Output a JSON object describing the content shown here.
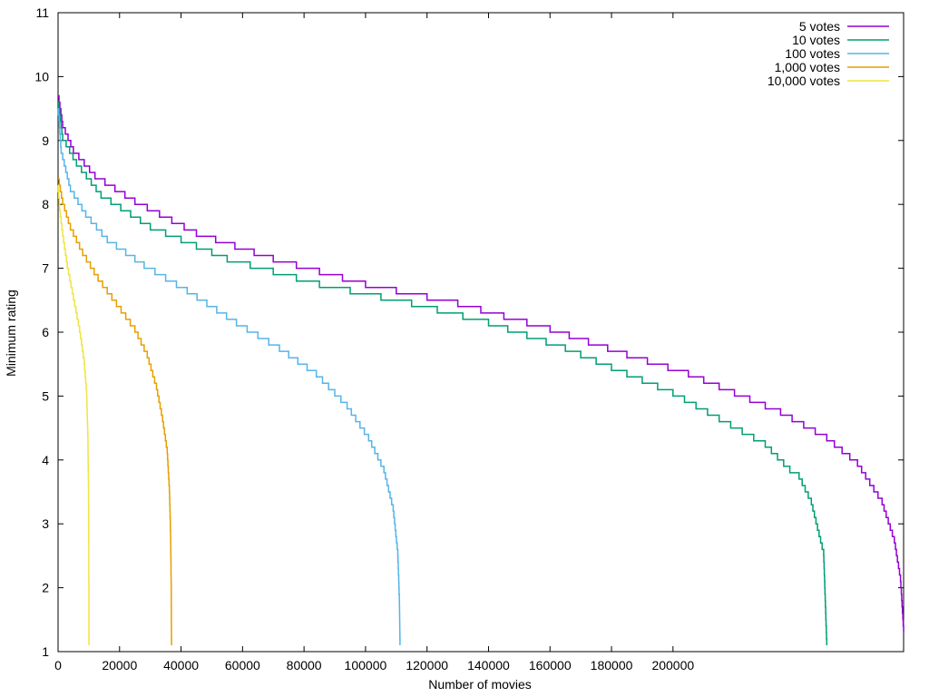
{
  "chart_data": {
    "type": "line",
    "title": "",
    "xlabel": "Number of movies",
    "ylabel": "Minimum rating",
    "xlim": [
      0,
      275000
    ],
    "ylim": [
      1,
      11
    ],
    "x_ticks": [
      "0",
      "20000",
      "40000",
      "60000",
      "80000",
      "100000",
      "120000",
      "140000",
      "160000",
      "180000",
      "200000"
    ],
    "x_tick_values": [
      0,
      20000,
      40000,
      60000,
      80000,
      100000,
      120000,
      140000,
      160000,
      180000,
      200000
    ],
    "y_ticks": [
      "1",
      "2",
      "3",
      "4",
      "5",
      "6",
      "7",
      "8",
      "9",
      "10",
      "11"
    ],
    "y_tick_values": [
      1,
      2,
      3,
      4,
      5,
      6,
      7,
      8,
      9,
      10,
      11
    ],
    "grid": false,
    "legend_position": "top-right",
    "series": [
      {
        "name": "5 votes",
        "color": "#9400d3",
        "points": [
          [
            0,
            9.7
          ],
          [
            1500,
            9.2
          ],
          [
            5000,
            8.8
          ],
          [
            12000,
            8.4
          ],
          [
            25000,
            8.0
          ],
          [
            45000,
            7.5
          ],
          [
            70000,
            7.1
          ],
          [
            100000,
            6.7
          ],
          [
            130000,
            6.4
          ],
          [
            160000,
            6.0
          ],
          [
            185000,
            5.6
          ],
          [
            205000,
            5.3
          ],
          [
            220000,
            5.0
          ],
          [
            235000,
            4.7
          ],
          [
            250000,
            4.3
          ],
          [
            260000,
            3.9
          ],
          [
            268000,
            3.3
          ],
          [
            272000,
            2.7
          ],
          [
            274000,
            2.1
          ],
          [
            275000,
            1.3
          ]
        ]
      },
      {
        "name": "10 votes",
        "color": "#009e73",
        "points": [
          [
            0,
            9.6
          ],
          [
            1500,
            9.0
          ],
          [
            6000,
            8.6
          ],
          [
            14000,
            8.1
          ],
          [
            30000,
            7.6
          ],
          [
            55000,
            7.1
          ],
          [
            85000,
            6.7
          ],
          [
            115000,
            6.4
          ],
          [
            140000,
            6.1
          ],
          [
            165000,
            5.7
          ],
          [
            185000,
            5.3
          ],
          [
            200000,
            5.0
          ],
          [
            215000,
            4.6
          ],
          [
            230000,
            4.2
          ],
          [
            240000,
            3.8
          ],
          [
            238000,
            3.8
          ],
          [
            245000,
            3.3
          ],
          [
            249000,
            2.5
          ],
          [
            247000,
            2.9
          ],
          [
            250000,
            1.1
          ]
        ]
      },
      {
        "name": "100 votes",
        "color": "#56b4e9",
        "points": [
          [
            0,
            9.5
          ],
          [
            1000,
            8.8
          ],
          [
            4000,
            8.2
          ],
          [
            9000,
            7.8
          ],
          [
            16000,
            7.4
          ],
          [
            28000,
            7.0
          ],
          [
            42000,
            6.6
          ],
          [
            58000,
            6.1
          ],
          [
            72000,
            5.7
          ],
          [
            84000,
            5.3
          ],
          [
            94000,
            4.8
          ],
          [
            101000,
            4.3
          ],
          [
            106000,
            3.8
          ],
          [
            109000,
            3.2
          ],
          [
            110500,
            2.5
          ],
          [
            111000,
            1.8
          ],
          [
            111200,
            1.1
          ]
        ]
      },
      {
        "name": "1,000 votes",
        "color": "#e69f00",
        "points": [
          [
            0,
            8.4
          ],
          [
            1500,
            8.0
          ],
          [
            4000,
            7.6
          ],
          [
            8000,
            7.2
          ],
          [
            13000,
            6.8
          ],
          [
            19000,
            6.4
          ],
          [
            25000,
            6.0
          ],
          [
            29000,
            5.6
          ],
          [
            32000,
            5.1
          ],
          [
            34000,
            4.6
          ],
          [
            35500,
            4.1
          ],
          [
            36200,
            3.5
          ],
          [
            36600,
            2.8
          ],
          [
            36800,
            2.0
          ],
          [
            36900,
            1.1
          ]
        ]
      },
      {
        "name": "10,000 votes",
        "color": "#f0e442",
        "points": [
          [
            0,
            8.3
          ],
          [
            500,
            7.9
          ],
          [
            1500,
            7.5
          ],
          [
            3000,
            7.0
          ],
          [
            5000,
            6.5
          ],
          [
            7000,
            6.0
          ],
          [
            8500,
            5.5
          ],
          [
            9300,
            5.0
          ],
          [
            9700,
            4.3
          ],
          [
            9900,
            3.5
          ],
          [
            10000,
            2.5
          ],
          [
            10050,
            1.1
          ]
        ]
      }
    ]
  }
}
